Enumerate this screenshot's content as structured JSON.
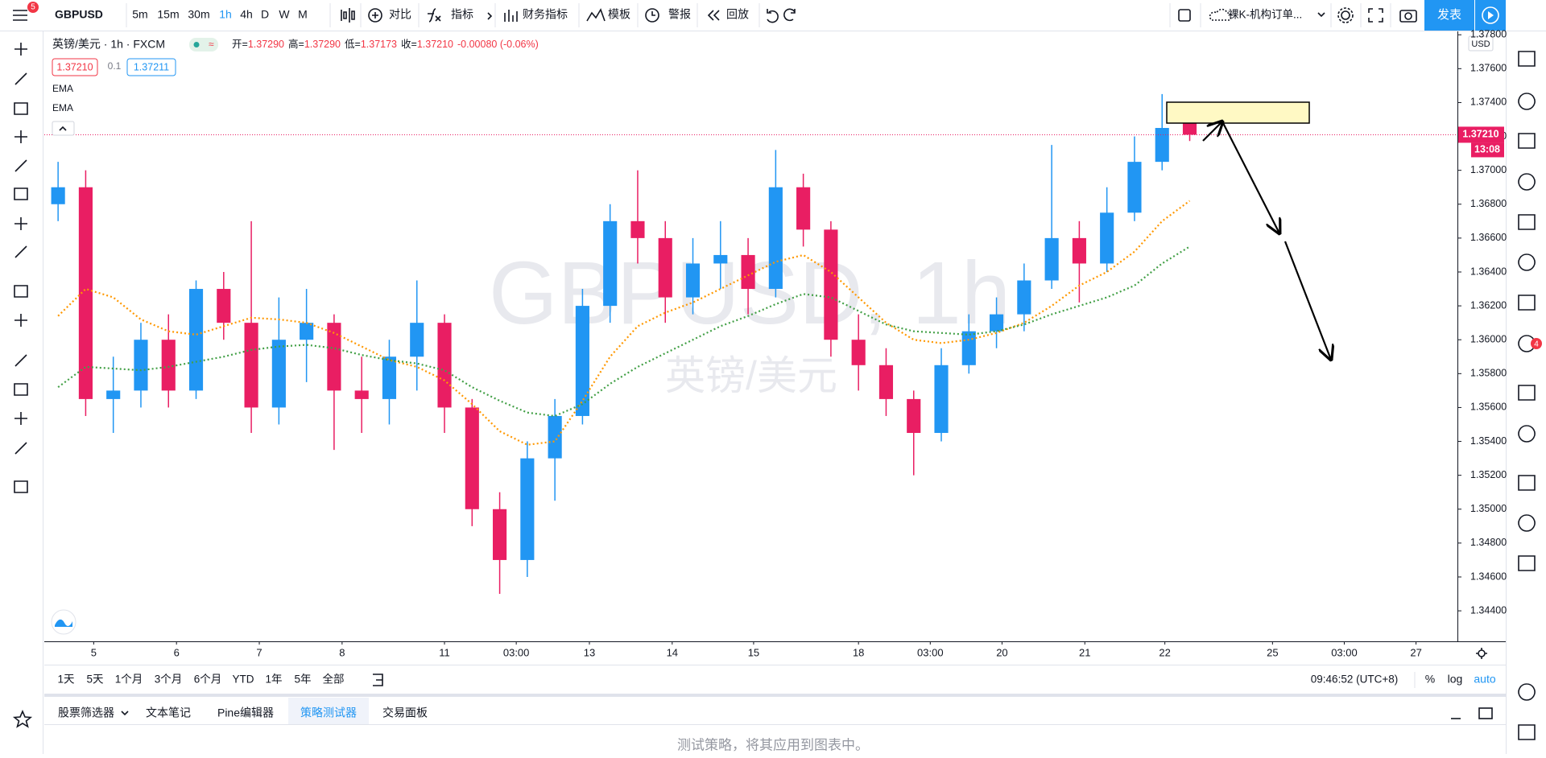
{
  "toolbar": {
    "badge": "5",
    "symbol": "GBPUSD",
    "intervals": [
      "5m",
      "15m",
      "30m",
      "1h",
      "4h",
      "D",
      "W",
      "M"
    ],
    "active_interval": "1h",
    "buttons": [
      "对比",
      "指标",
      "财务指标",
      "模板",
      "警报",
      "回放"
    ],
    "layout_name": "裸K-机构订单...",
    "publish": "发表"
  },
  "legend": {
    "title": "英镑/美元 · 1h · FXCM",
    "ohlc": [
      {
        "label": "开=",
        "value": "1.37290"
      },
      {
        "label": "高=",
        "value": "1.37290"
      },
      {
        "label": "低=",
        "value": "1.37173"
      },
      {
        "label": "收=",
        "value": "1.37210"
      }
    ],
    "change": "-0.00080 (-0.06%)",
    "sell": "1.37210",
    "spread": "0.1",
    "buy": "1.37211"
  },
  "watermark": {
    "symbol": "GBPUSD, 1h",
    "name": "英镑/美元"
  },
  "chart_data": {
    "type": "candlestick",
    "currency": "USD",
    "x": [
      0,
      1,
      2,
      3,
      4,
      5,
      6,
      7,
      8,
      9,
      10,
      11,
      12,
      13,
      14,
      15,
      16,
      17,
      18,
      19,
      20,
      21,
      22,
      23,
      24,
      25,
      26,
      27,
      28,
      29,
      30,
      31,
      32,
      33,
      34,
      35,
      36,
      37,
      38,
      39,
      40,
      41
    ],
    "open": [
      1.368,
      1.369,
      1.3565,
      1.357,
      1.36,
      1.357,
      1.363,
      1.361,
      1.356,
      1.36,
      1.361,
      1.357,
      1.3565,
      1.359,
      1.361,
      1.356,
      1.35,
      1.347,
      1.353,
      1.3555,
      1.362,
      1.367,
      1.366,
      1.3625,
      1.3645,
      1.365,
      1.363,
      1.369,
      1.3665,
      1.36,
      1.3585,
      1.3565,
      1.3545,
      1.3585,
      1.3605,
      1.3615,
      1.3635,
      1.366,
      1.3645,
      1.3675,
      1.3705,
      1.3729
    ],
    "high": [
      1.3705,
      1.37,
      1.359,
      1.361,
      1.3615,
      1.3635,
      1.364,
      1.367,
      1.3625,
      1.363,
      1.3615,
      1.359,
      1.36,
      1.3635,
      1.3615,
      1.3565,
      1.351,
      1.354,
      1.3565,
      1.363,
      1.368,
      1.37,
      1.367,
      1.366,
      1.367,
      1.366,
      1.3712,
      1.3698,
      1.367,
      1.3615,
      1.3595,
      1.357,
      1.3595,
      1.3615,
      1.3625,
      1.3645,
      1.3715,
      1.367,
      1.369,
      1.372,
      1.3745,
      1.3729
    ],
    "low": [
      1.367,
      1.3555,
      1.3545,
      1.356,
      1.356,
      1.3565,
      1.36,
      1.3545,
      1.355,
      1.3575,
      1.3535,
      1.3545,
      1.355,
      1.357,
      1.3545,
      1.349,
      1.345,
      1.346,
      1.3505,
      1.355,
      1.361,
      1.3645,
      1.361,
      1.3615,
      1.363,
      1.3615,
      1.3625,
      1.3655,
      1.359,
      1.357,
      1.3555,
      1.352,
      1.354,
      1.358,
      1.3595,
      1.3605,
      1.363,
      1.3622,
      1.364,
      1.367,
      1.37,
      1.37173
    ],
    "close": [
      1.369,
      1.3565,
      1.357,
      1.36,
      1.357,
      1.363,
      1.361,
      1.356,
      1.36,
      1.361,
      1.357,
      1.3565,
      1.359,
      1.361,
      1.356,
      1.35,
      1.347,
      1.353,
      1.3555,
      1.362,
      1.367,
      1.366,
      1.3625,
      1.3645,
      1.365,
      1.363,
      1.369,
      1.3665,
      1.36,
      1.3585,
      1.3565,
      1.3545,
      1.3585,
      1.3605,
      1.3615,
      1.3635,
      1.366,
      1.3645,
      1.3675,
      1.3705,
      1.3725,
      1.3721
    ],
    "up_color": "#2196f3",
    "down_color": "#e91e63",
    "series": [
      {
        "name": "EMA",
        "color": "#ff9800",
        "values": [
          1.3614,
          1.363,
          1.3625,
          1.3612,
          1.3605,
          1.3603,
          1.3608,
          1.3613,
          1.3612,
          1.361,
          1.3604,
          1.3596,
          1.3588,
          1.3584,
          1.3576,
          1.3562,
          1.3546,
          1.3538,
          1.354,
          1.3564,
          1.359,
          1.3608,
          1.3616,
          1.3622,
          1.363,
          1.3638,
          1.3646,
          1.365,
          1.364,
          1.3625,
          1.361,
          1.36,
          1.3598,
          1.36,
          1.3604,
          1.361,
          1.362,
          1.3632,
          1.364,
          1.3652,
          1.367,
          1.3682
        ]
      },
      {
        "name": "EMA",
        "color": "#43a047",
        "values": [
          1.3572,
          1.3584,
          1.3583,
          1.3582,
          1.3584,
          1.3587,
          1.359,
          1.3594,
          1.3596,
          1.3597,
          1.3595,
          1.3591,
          1.3588,
          1.3586,
          1.3582,
          1.3572,
          1.3564,
          1.3557,
          1.3555,
          1.3562,
          1.3574,
          1.3584,
          1.3592,
          1.36,
          1.3608,
          1.3614,
          1.3621,
          1.3627,
          1.3625,
          1.3617,
          1.3609,
          1.3605,
          1.3604,
          1.3603,
          1.3605,
          1.3609,
          1.3615,
          1.362,
          1.3625,
          1.3632,
          1.3645,
          1.3655
        ]
      }
    ],
    "last_price": 1.3721,
    "last_price_label": "1.37210",
    "countdown": "13:08",
    "xlim": [
      -0.5,
      50.7
    ],
    "ylim": [
      1.3422,
      1.3782
    ],
    "xticks": [
      {
        "value": 1.29,
        "label": "5"
      },
      {
        "value": 4.29,
        "label": "6"
      },
      {
        "value": 7.29,
        "label": "7"
      },
      {
        "value": 10.29,
        "label": "8"
      },
      {
        "value": 14.0,
        "label": "11"
      },
      {
        "value": 16.6,
        "label": "03:00"
      },
      {
        "value": 19.25,
        "label": "13"
      },
      {
        "value": 22.25,
        "label": "14"
      },
      {
        "value": 25.2,
        "label": "15"
      },
      {
        "value": 29.0,
        "label": "18"
      },
      {
        "value": 31.6,
        "label": "03:00"
      },
      {
        "value": 34.2,
        "label": "20"
      },
      {
        "value": 37.2,
        "label": "21"
      },
      {
        "value": 40.1,
        "label": "22"
      },
      {
        "value": 44.0,
        "label": "25"
      },
      {
        "value": 46.6,
        "label": "03:00"
      },
      {
        "value": 49.2,
        "label": "27"
      }
    ],
    "yticks": [
      {
        "value": 1.344,
        "label": "1.34400"
      },
      {
        "value": 1.346,
        "label": "1.34600"
      },
      {
        "value": 1.348,
        "label": "1.34800"
      },
      {
        "value": 1.35,
        "label": "1.35000"
      },
      {
        "value": 1.352,
        "label": "1.35200"
      },
      {
        "value": 1.354,
        "label": "1.35400"
      },
      {
        "value": 1.356,
        "label": "1.35600"
      },
      {
        "value": 1.358,
        "label": "1.35800"
      },
      {
        "value": 1.36,
        "label": "1.36000"
      },
      {
        "value": 1.362,
        "label": "1.36200"
      },
      {
        "value": 1.364,
        "label": "1.36400"
      },
      {
        "value": 1.366,
        "label": "1.36600"
      },
      {
        "value": 1.368,
        "label": "1.36800"
      },
      {
        "value": 1.37,
        "label": "1.37000"
      },
      {
        "value": 1.372,
        "label": "1.37200"
      },
      {
        "value": 1.374,
        "label": "1.37400"
      },
      {
        "value": 1.376,
        "label": "1.37600"
      },
      {
        "value": 1.378,
        "label": "1.37800"
      }
    ]
  },
  "range_bar": {
    "ranges": [
      "1天",
      "5天",
      "1个月",
      "3个月",
      "6个月",
      "YTD",
      "1年",
      "5年",
      "全部"
    ],
    "clock": "09:46:52 (UTC+8)",
    "percent": "%",
    "log": "log",
    "auto": "auto"
  },
  "bottom_panel": {
    "tabs": [
      "股票筛选器",
      "文本笔记",
      "Pine编辑器",
      "策略测试器",
      "交易面板"
    ],
    "active_tab": "策略测试器",
    "message": "测试策略，将其应用到图表中。"
  },
  "sidebar": {
    "badge": "4"
  }
}
